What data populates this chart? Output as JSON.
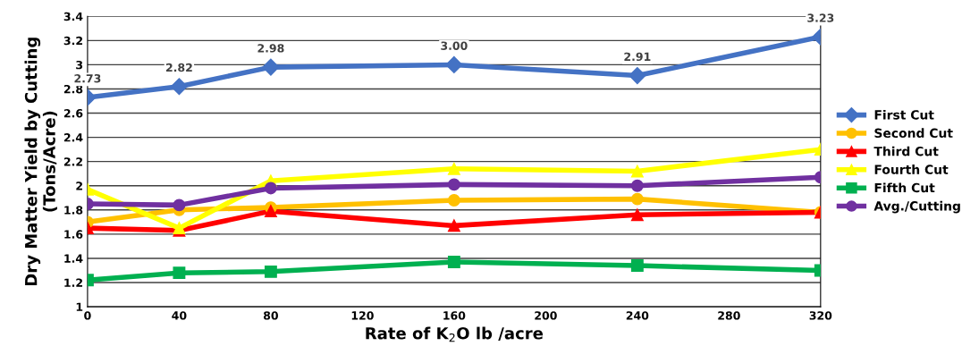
{
  "chart_data": {
    "type": "line",
    "xlabel": "Rate of K$_{2}$O lb /acre",
    "ylabel": "Dry Matter Yield by Cutting\n(Tons/Acre)",
    "x": [
      0,
      40,
      80,
      160,
      240,
      320
    ],
    "series": [
      {
        "name": "First Cut",
        "color": "#4472c4",
        "marker": "diamond",
        "values": [
          2.73,
          2.82,
          2.98,
          3.0,
          2.91,
          3.23
        ],
        "value_labels": [
          "2.73",
          "2.82",
          "2.98",
          "3.00",
          "2.91",
          "3.23"
        ]
      },
      {
        "name": "Second Cut",
        "color": "#ffc000",
        "marker": "circle",
        "values": [
          1.7,
          1.8,
          1.82,
          1.88,
          1.89,
          1.78
        ]
      },
      {
        "name": "Third Cut",
        "color": "#ff0000",
        "marker": "triangle",
        "values": [
          1.65,
          1.63,
          1.79,
          1.67,
          1.76,
          1.78
        ]
      },
      {
        "name": "Fourth Cut",
        "color": "#ffff00",
        "marker": "triangle",
        "values": [
          1.97,
          1.65,
          2.04,
          2.14,
          2.12,
          2.3
        ]
      },
      {
        "name": "Fifth Cut",
        "color": "#00b050",
        "marker": "square",
        "values": [
          1.22,
          1.28,
          1.29,
          1.37,
          1.34,
          1.3
        ]
      },
      {
        "name": "Avg./Cutting",
        "color": "#7030a0",
        "marker": "circle",
        "values": [
          1.85,
          1.84,
          1.98,
          2.01,
          2.0,
          2.07
        ]
      }
    ],
    "xlim": [
      0,
      320
    ],
    "xticks": [
      0,
      40,
      80,
      120,
      160,
      200,
      240,
      280,
      320
    ],
    "ylim": [
      1,
      3.4
    ],
    "yticks": [
      1,
      1.2,
      1.4,
      1.6,
      1.8,
      2,
      2.2,
      2.4,
      2.6,
      2.8,
      3,
      3.2,
      3.4
    ],
    "grid": "y",
    "legend": "right"
  }
}
